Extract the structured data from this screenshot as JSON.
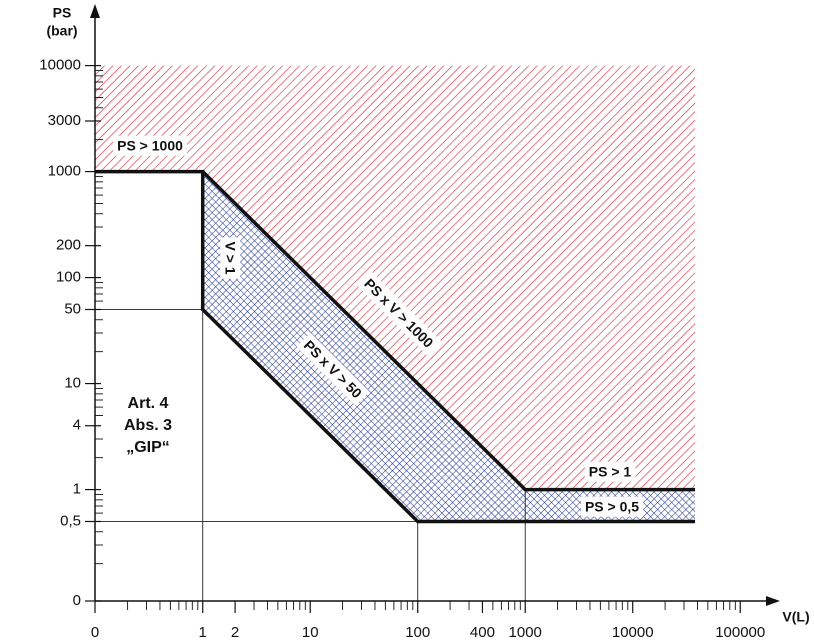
{
  "chart_data": {
    "type": "region",
    "y_label": [
      "PS",
      "(bar)"
    ],
    "x_label": "V(L)",
    "log_scale": true,
    "xlim": [
      0,
      170000
    ],
    "ylim": [
      0,
      30000
    ],
    "xticks": [
      0,
      1,
      2,
      10,
      100,
      400,
      1000,
      10000,
      100000
    ],
    "yticks": [
      0,
      {
        "value": 0.5,
        "label": "0,5"
      },
      1,
      4,
      10,
      50,
      100,
      200,
      1000,
      3000,
      10000
    ],
    "xminorticks": [
      0.2,
      0.3,
      0.4,
      0.5,
      0.6,
      0.7,
      0.8,
      0.9,
      3,
      4,
      5,
      6,
      7,
      8,
      9,
      20,
      30,
      40,
      50,
      60,
      70,
      80,
      90,
      200,
      300,
      500,
      600,
      700,
      800,
      900,
      2000,
      3000,
      4000,
      5000,
      6000,
      7000,
      8000,
      9000,
      20000,
      30000,
      40000,
      50000,
      60000,
      70000,
      80000,
      90000
    ],
    "yminorticks": [
      0.2,
      0.3,
      0.4,
      0.6,
      0.7,
      0.8,
      0.9,
      2,
      3,
      5,
      6,
      7,
      8,
      9,
      20,
      30,
      40,
      60,
      70,
      80,
      90,
      300,
      400,
      500,
      600,
      700,
      800,
      900,
      2000,
      4000,
      5000,
      6000,
      7000,
      8000,
      9000
    ],
    "areas": [
      {
        "color": "#d9303f",
        "pattern": "hatch",
        "x": [
          0,
          1,
          1000,
          38000,
          38000,
          0
        ],
        "y": [
          1000,
          1000,
          1,
          1,
          10000,
          10000
        ]
      },
      {
        "color": "#2b3e9a",
        "pattern": "crosshatch",
        "x": [
          1,
          1,
          100,
          38000,
          38000,
          1000
        ],
        "y": [
          1000,
          50,
          0.5,
          0.5,
          1,
          1
        ]
      }
    ],
    "boundaries": [
      {
        "x": [
          0,
          1,
          1,
          100,
          38000
        ],
        "y": [
          1000,
          1000,
          50,
          0.5,
          0.5
        ]
      },
      {
        "x": [
          1,
          1000,
          38000
        ],
        "y": [
          1000,
          1,
          1
        ]
      }
    ],
    "guides": [
      {
        "x": [
          1,
          1,
          0
        ],
        "y": [
          0,
          50,
          50
        ]
      },
      {
        "x": [
          100,
          100,
          0
        ],
        "y": [
          0,
          0.5,
          0.5
        ]
      },
      {
        "x": [
          1000,
          1000
        ],
        "y": [
          0,
          1
        ]
      }
    ],
    "region_labels": [
      "PS > 1000",
      "V > 1",
      "PS x V > 1000",
      "PS x V > 50",
      "PS > 1",
      "PS > 0,5"
    ],
    "note": [
      "Art. 4",
      "Abs. 3",
      "„GIP“"
    ]
  }
}
